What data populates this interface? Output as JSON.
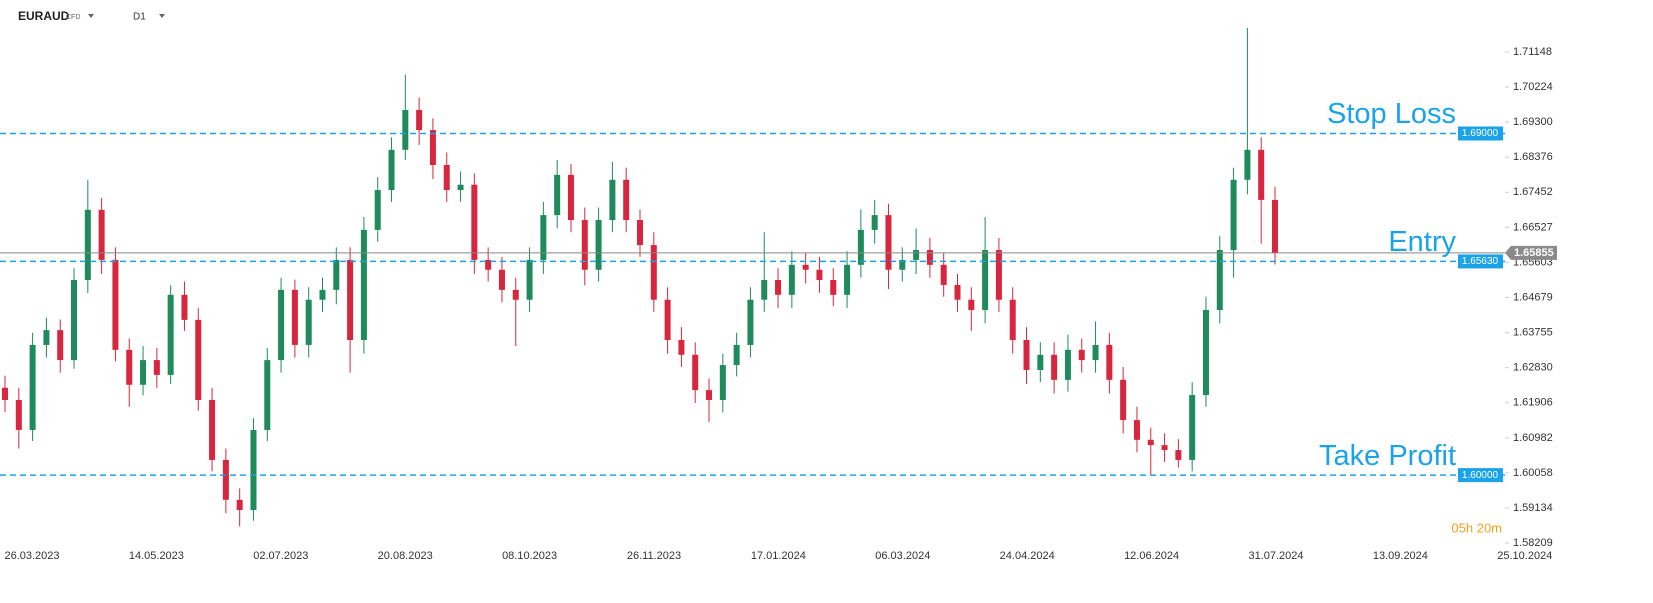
{
  "header": {
    "symbol": "EURAUD",
    "instrument": "CFD",
    "timeframe": "D1",
    "countdown": "05h 20m"
  },
  "chart_data": {
    "type": "candlestick",
    "up_color": "#1f8a5b",
    "down_color": "#d7263d",
    "level_color": "#1aa3e8",
    "ylim": [
      1.5808,
      1.7199
    ],
    "yticks": [
      1.71148,
      1.70224,
      {
        "value": 1.693,
        "label": "1.69300"
      },
      1.68376,
      1.67452,
      1.66527,
      1.65603,
      1.64679,
      1.63755,
      {
        "value": 1.6283,
        "label": "1.62830"
      },
      1.61906,
      1.60982,
      1.60058,
      1.59134,
      1.58209
    ],
    "xticks": [
      "26.03.2023",
      "14.05.2023",
      "02.07.2023",
      "20.08.2023",
      "08.10.2023",
      "26.11.2023",
      "17.01.2024",
      "06.03.2024",
      "24.04.2024",
      "12.06.2024",
      "31.07.2024",
      "13.09.2024",
      "25.10.2024"
    ],
    "levels": [
      {
        "name": "Stop Loss",
        "value": 1.69,
        "value_label": "1.69000"
      },
      {
        "name": "Entry",
        "value": 1.6563,
        "value_label": "1.65630"
      },
      {
        "name": "Take Profit",
        "value": 1.6,
        "value_label": "1.60000"
      }
    ],
    "current_price": 1.65855,
    "ohlc": [
      [
        1.623,
        1.6262,
        1.6166,
        1.6198
      ],
      [
        1.6198,
        1.623,
        1.607,
        1.6119
      ],
      [
        1.6119,
        1.6375,
        1.609,
        1.6343
      ],
      [
        1.6343,
        1.6415,
        1.631,
        1.6382
      ],
      [
        1.6382,
        1.641,
        1.627,
        1.6303
      ],
      [
        1.6303,
        1.6545,
        1.628,
        1.6514
      ],
      [
        1.6514,
        1.6778,
        1.648,
        1.6699
      ],
      [
        1.6699,
        1.673,
        1.653,
        1.6567
      ],
      [
        1.6567,
        1.66,
        1.63,
        1.633
      ],
      [
        1.633,
        1.636,
        1.618,
        1.6238
      ],
      [
        1.6238,
        1.634,
        1.621,
        1.6303
      ],
      [
        1.6303,
        1.6335,
        1.623,
        1.6264
      ],
      [
        1.6264,
        1.65,
        1.624,
        1.6475
      ],
      [
        1.6475,
        1.651,
        1.638,
        1.6409
      ],
      [
        1.6409,
        1.644,
        1.617,
        1.6198
      ],
      [
        1.6198,
        1.623,
        1.601,
        1.604
      ],
      [
        1.604,
        1.607,
        1.59,
        1.5935
      ],
      [
        1.5935,
        1.5965,
        1.5865,
        1.5908
      ],
      [
        1.5908,
        1.615,
        1.588,
        1.6119
      ],
      [
        1.6119,
        1.6335,
        1.609,
        1.6303
      ],
      [
        1.6303,
        1.652,
        1.627,
        1.6488
      ],
      [
        1.6488,
        1.6515,
        1.631,
        1.6343
      ],
      [
        1.6343,
        1.6495,
        1.631,
        1.6462
      ],
      [
        1.6462,
        1.652,
        1.643,
        1.6488
      ],
      [
        1.6488,
        1.66,
        1.645,
        1.6567
      ],
      [
        1.6567,
        1.66,
        1.627,
        1.6356
      ],
      [
        1.6356,
        1.668,
        1.632,
        1.6646
      ],
      [
        1.6646,
        1.6785,
        1.6615,
        1.6751
      ],
      [
        1.6751,
        1.689,
        1.672,
        1.6857
      ],
      [
        1.6857,
        1.7055,
        1.683,
        1.6962
      ],
      [
        1.6962,
        1.6995,
        1.687,
        1.6909
      ],
      [
        1.6909,
        1.694,
        1.678,
        1.6817
      ],
      [
        1.6817,
        1.685,
        1.672,
        1.6751
      ],
      [
        1.6751,
        1.68,
        1.672,
        1.6765
      ],
      [
        1.6765,
        1.6795,
        1.653,
        1.6567
      ],
      [
        1.6567,
        1.66,
        1.651,
        1.6541
      ],
      [
        1.6541,
        1.6575,
        1.6455,
        1.6488
      ],
      [
        1.6488,
        1.652,
        1.634,
        1.6462
      ],
      [
        1.6462,
        1.66,
        1.643,
        1.6567
      ],
      [
        1.6567,
        1.672,
        1.653,
        1.6685
      ],
      [
        1.6685,
        1.683,
        1.665,
        1.6791
      ],
      [
        1.6791,
        1.682,
        1.664,
        1.6672
      ],
      [
        1.6672,
        1.6705,
        1.65,
        1.6541
      ],
      [
        1.6541,
        1.6705,
        1.651,
        1.6672
      ],
      [
        1.6672,
        1.6825,
        1.664,
        1.6778
      ],
      [
        1.6778,
        1.681,
        1.664,
        1.6672
      ],
      [
        1.6672,
        1.67,
        1.6575,
        1.6606
      ],
      [
        1.6606,
        1.664,
        1.643,
        1.6462
      ],
      [
        1.6462,
        1.6495,
        1.632,
        1.6356
      ],
      [
        1.6356,
        1.639,
        1.6285,
        1.6317
      ],
      [
        1.6317,
        1.635,
        1.619,
        1.6224
      ],
      [
        1.6224,
        1.6255,
        1.614,
        1.6198
      ],
      [
        1.6198,
        1.632,
        1.6165,
        1.629
      ],
      [
        1.629,
        1.6375,
        1.626,
        1.6343
      ],
      [
        1.6343,
        1.6495,
        1.631,
        1.6462
      ],
      [
        1.6462,
        1.664,
        1.643,
        1.6514
      ],
      [
        1.6514,
        1.6545,
        1.644,
        1.6475
      ],
      [
        1.6475,
        1.659,
        1.644,
        1.6554
      ],
      [
        1.6554,
        1.6585,
        1.6505,
        1.6541
      ],
      [
        1.6541,
        1.6575,
        1.648,
        1.6514
      ],
      [
        1.6514,
        1.6545,
        1.6445,
        1.6475
      ],
      [
        1.6475,
        1.659,
        1.644,
        1.6554
      ],
      [
        1.6554,
        1.67,
        1.652,
        1.6646
      ],
      [
        1.6646,
        1.6725,
        1.661,
        1.6685
      ],
      [
        1.6685,
        1.6715,
        1.649,
        1.6541
      ],
      [
        1.6541,
        1.66,
        1.651,
        1.6567
      ],
      [
        1.6567,
        1.665,
        1.653,
        1.6593
      ],
      [
        1.6593,
        1.6625,
        1.652,
        1.6554
      ],
      [
        1.6554,
        1.6585,
        1.647,
        1.6501
      ],
      [
        1.6501,
        1.653,
        1.643,
        1.6462
      ],
      [
        1.6462,
        1.6495,
        1.638,
        1.6435
      ],
      [
        1.6435,
        1.668,
        1.64,
        1.6593
      ],
      [
        1.6593,
        1.6625,
        1.643,
        1.6462
      ],
      [
        1.6462,
        1.6495,
        1.632,
        1.6356
      ],
      [
        1.6356,
        1.639,
        1.624,
        1.6277
      ],
      [
        1.6277,
        1.635,
        1.6245,
        1.6317
      ],
      [
        1.6317,
        1.635,
        1.6215,
        1.6251
      ],
      [
        1.6251,
        1.637,
        1.622,
        1.633
      ],
      [
        1.633,
        1.636,
        1.627,
        1.6303
      ],
      [
        1.6303,
        1.6405,
        1.627,
        1.6343
      ],
      [
        1.6343,
        1.6375,
        1.6215,
        1.6251
      ],
      [
        1.6251,
        1.6285,
        1.611,
        1.6145
      ],
      [
        1.6145,
        1.618,
        1.606,
        1.6093
      ],
      [
        1.6093,
        1.6125,
        1.6,
        1.6079
      ],
      [
        1.6079,
        1.611,
        1.6035,
        1.6066
      ],
      [
        1.6066,
        1.6095,
        1.602,
        1.604
      ],
      [
        1.604,
        1.6245,
        1.601,
        1.6211
      ],
      [
        1.6211,
        1.647,
        1.618,
        1.6435
      ],
      [
        1.6435,
        1.663,
        1.64,
        1.6593
      ],
      [
        1.6593,
        1.681,
        1.652,
        1.6778
      ],
      [
        1.6778,
        1.7178,
        1.674,
        1.6857
      ],
      [
        1.6857,
        1.689,
        1.661,
        1.6725
      ],
      [
        1.6725,
        1.676,
        1.6555,
        1.6585
      ]
    ]
  }
}
